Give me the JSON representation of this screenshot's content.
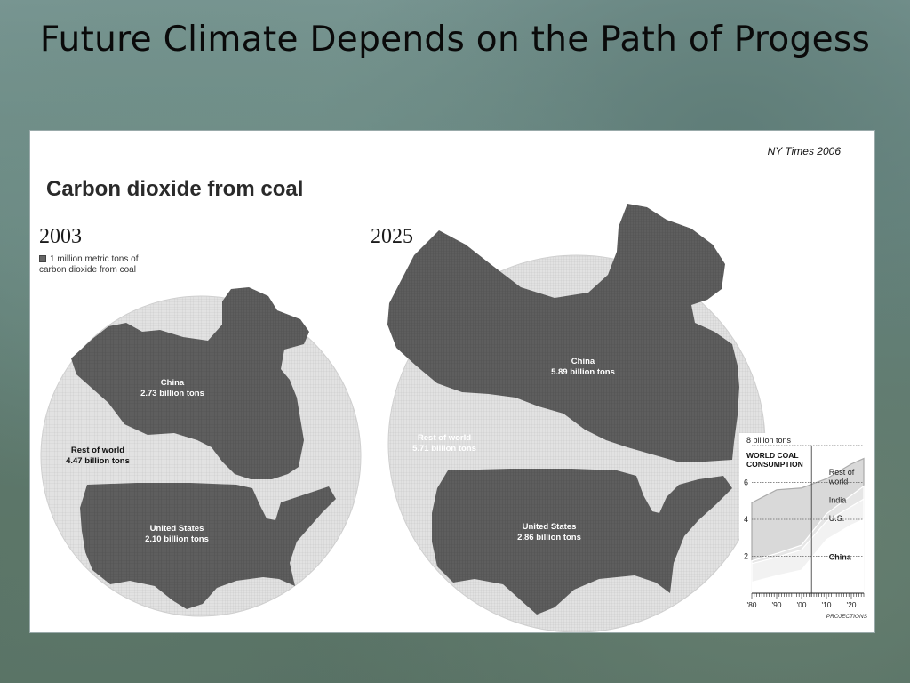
{
  "slide_title": "Future Climate Depends on the Path of Progess",
  "credit": "NY Times 2006",
  "chart_data": [
    {
      "type": "cartogram",
      "title": "Carbon dioxide from coal",
      "unit_legend": "1 million metric tons of carbon dioxide from coal",
      "panels": [
        {
          "year": "2003",
          "regions": [
            {
              "name": "China",
              "label": "2.73 billion tons",
              "value": 2.73
            },
            {
              "name": "Rest of world",
              "label": "4.47 billion tons",
              "value": 4.47
            },
            {
              "name": "United States",
              "label": "2.10 billion tons",
              "value": 2.1
            }
          ]
        },
        {
          "year": "2025",
          "regions": [
            {
              "name": "China",
              "label": "5.89 billion tons",
              "value": 5.89
            },
            {
              "name": "Rest of world",
              "label": "5.71 billion tons",
              "value": 5.71
            },
            {
              "name": "United States",
              "label": "2.86 billion tons",
              "value": 2.86
            }
          ]
        }
      ]
    },
    {
      "type": "area",
      "title": "WORLD COAL CONSUMPTION",
      "unit": "billion tons",
      "y_top_label": "8 billion tons",
      "ylim": [
        0,
        8
      ],
      "yticks": [
        2,
        4,
        6
      ],
      "x": [
        1980,
        1990,
        2000,
        2010,
        2020,
        2025
      ],
      "xtick_labels": [
        "'80",
        "'90",
        "'00",
        "'10",
        "'20"
      ],
      "xtick_values": [
        1980,
        1990,
        2000,
        2010,
        2020
      ],
      "projections_start": 2004,
      "projections_label": "PROJECTIONS",
      "series": [
        {
          "name": "China",
          "values": [
            0.6,
            0.95,
            1.25,
            2.9,
            3.7,
            4.0
          ]
        },
        {
          "name": "U.S.",
          "values": [
            1.6,
            1.95,
            2.35,
            3.9,
            4.7,
            5.1
          ]
        },
        {
          "name": "India",
          "values": [
            1.75,
            2.15,
            2.6,
            4.3,
            5.3,
            5.8
          ]
        },
        {
          "name": "Rest of world",
          "values": [
            4.9,
            5.6,
            5.7,
            6.2,
            7.0,
            7.3
          ]
        }
      ]
    }
  ]
}
